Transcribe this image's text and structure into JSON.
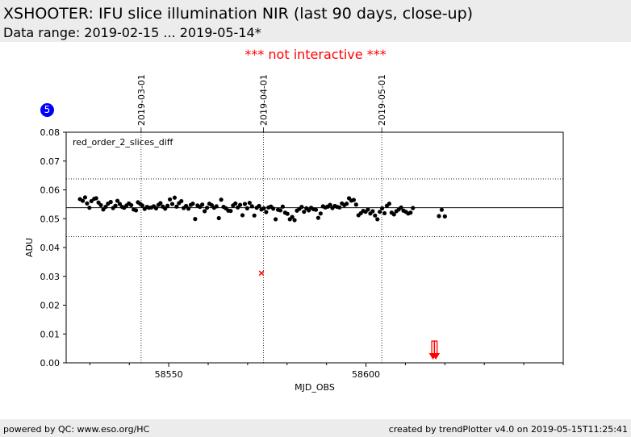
{
  "header": {
    "title": "XSHOOTER: IFU slice illumination NIR (last 90 days, close-up)",
    "subtitle": "Data range: 2019-02-15 ... 2019-05-14*"
  },
  "notice": "*** not interactive ***",
  "badge": "5",
  "footer": {
    "left": "powered by QC: www.eso.org/HC",
    "right": "created by trendPlotter v4.0 on 2019-05-15T11:25:41"
  },
  "chart_data": {
    "type": "scatter",
    "title": "",
    "xlabel": "MJD_OBS",
    "ylabel": "ADU",
    "panel_label": "red_order_2_slices_diff",
    "xlim": [
      58524,
      58650
    ],
    "ylim": [
      0.0,
      0.08
    ],
    "x_ticks": [
      58550,
      58600
    ],
    "x_tick_labels": [
      "58550",
      "58600"
    ],
    "y_ticks": [
      0.0,
      0.01,
      0.02,
      0.03,
      0.04,
      0.05,
      0.06,
      0.07,
      0.08
    ],
    "y_tick_labels": [
      "0.00",
      "0.01",
      "0.02",
      "0.03",
      "0.04",
      "0.05",
      "0.06",
      "0.07",
      "0.08"
    ],
    "date_markers": [
      {
        "x": 58543,
        "label": "2019-03-01"
      },
      {
        "x": 58574,
        "label": "2019-04-01"
      },
      {
        "x": 58604,
        "label": "2019-05-01"
      }
    ],
    "reference_line": 0.0538,
    "threshold_lines": [
      0.0438,
      0.0638
    ],
    "grid": false,
    "point_color": "#000000",
    "outlier_color": "#ff0000",
    "series": [
      {
        "x": [
          58527.5,
          58528.2,
          58528.8,
          58529.3,
          58529.9,
          58530.4,
          58531.1,
          58531.6,
          58532.2,
          58532.8,
          58533.4,
          58534.0,
          58534.6,
          58535.3,
          58535.9,
          58536.5,
          58537.0,
          58537.6,
          58538.2,
          58538.7,
          58539.3,
          58539.9,
          58540.5,
          58541.1,
          58541.7,
          58542.2,
          58542.8,
          58543.3,
          58543.9,
          58544.5,
          58545.0,
          58545.6,
          58546.2,
          58546.8,
          58547.4,
          58547.9,
          58548.5,
          58549.1,
          58549.7,
          58550.3,
          58550.9,
          58551.5,
          58552.0,
          58552.6,
          58553.2,
          58553.8,
          58554.4,
          58555.0,
          58555.6,
          58556.1,
          58556.7,
          58557.3,
          58557.9,
          58558.5,
          58559.1,
          58559.7,
          58560.3,
          58560.9,
          58561.5,
          58562.1,
          58562.7,
          58563.3,
          58563.9,
          58564.5,
          58565.1,
          58565.7,
          58566.3,
          58566.9,
          58567.5,
          58568.1,
          58568.7,
          58569.3,
          58569.9,
          58570.5,
          58571.1,
          58571.7,
          58572.3,
          58572.9,
          58573.5,
          58574.1,
          58574.7,
          58575.3,
          58575.9,
          58576.5,
          58577.1,
          58577.7,
          58578.3,
          58578.9,
          58579.5,
          58580.1,
          58580.7,
          58581.3,
          58581.9,
          58582.5,
          58583.1,
          58583.7,
          58584.3,
          58584.9,
          58585.5,
          58586.1,
          58586.7,
          58587.3,
          58587.9,
          58588.5,
          58589.1,
          58589.7,
          58590.3,
          58590.9,
          58591.5,
          58592.1,
          58592.7,
          58593.3,
          58593.9,
          58594.5,
          58595.1,
          58595.7,
          58596.3,
          58596.9,
          58597.5,
          58598.1,
          58598.7,
          58599.3,
          58599.9,
          58600.5,
          58601.1,
          58601.7,
          58602.3,
          58602.9,
          58603.5,
          58604.1,
          58604.7,
          58605.3,
          58605.9,
          58606.5,
          58607.1,
          58607.7,
          58608.3,
          58608.9,
          58609.5,
          58610.1,
          58610.7,
          58611.3,
          58611.9,
          58618.5,
          58619.2,
          58620.0
        ],
        "y": [
          0.0568,
          0.0562,
          0.0574,
          0.0553,
          0.0538,
          0.0561,
          0.0569,
          0.0571,
          0.0556,
          0.0547,
          0.0532,
          0.0541,
          0.0552,
          0.0558,
          0.0537,
          0.0545,
          0.0562,
          0.0551,
          0.0541,
          0.0538,
          0.0546,
          0.0553,
          0.0547,
          0.0532,
          0.0529,
          0.0557,
          0.0551,
          0.0546,
          0.0534,
          0.0541,
          0.0538,
          0.0539,
          0.0543,
          0.0536,
          0.0548,
          0.0554,
          0.0542,
          0.0535,
          0.0545,
          0.0567,
          0.0551,
          0.0573,
          0.0542,
          0.0554,
          0.0561,
          0.0537,
          0.0544,
          0.0535,
          0.0548,
          0.0552,
          0.0499,
          0.0546,
          0.0541,
          0.0549,
          0.0526,
          0.0538,
          0.0552,
          0.0547,
          0.0538,
          0.0543,
          0.0502,
          0.0566,
          0.0541,
          0.0536,
          0.0528,
          0.0527,
          0.0546,
          0.0553,
          0.0539,
          0.0548,
          0.0512,
          0.0551,
          0.0536,
          0.0555,
          0.0543,
          0.0511,
          0.0538,
          0.0544,
          0.0532,
          0.0536,
          0.0523,
          0.0539,
          0.0542,
          0.0535,
          0.0498,
          0.0531,
          0.0529,
          0.0542,
          0.0521,
          0.0517,
          0.0498,
          0.0506,
          0.0495,
          0.0528,
          0.0534,
          0.0541,
          0.0524,
          0.0536,
          0.0529,
          0.0538,
          0.0533,
          0.0531,
          0.0503,
          0.0518,
          0.0543,
          0.0539,
          0.0542,
          0.0548,
          0.0537,
          0.0544,
          0.0541,
          0.0539,
          0.0553,
          0.0547,
          0.0552,
          0.0571,
          0.0563,
          0.0565,
          0.0549,
          0.0512,
          0.0519,
          0.0527,
          0.0524,
          0.0532,
          0.0518,
          0.0526,
          0.0511,
          0.0498,
          0.0524,
          0.0536,
          0.0519,
          0.0545,
          0.0552,
          0.0521,
          0.0515,
          0.0526,
          0.0532,
          0.0539,
          0.0528,
          0.0524,
          0.0518,
          0.0521,
          0.0537,
          0.0509,
          0.0531,
          0.0508
        ]
      }
    ],
    "outliers": [
      {
        "x": 58573.5,
        "y": 0.0311,
        "marker": "x"
      }
    ],
    "offscale_arrows": [
      58617.0,
      58617.7
    ]
  }
}
